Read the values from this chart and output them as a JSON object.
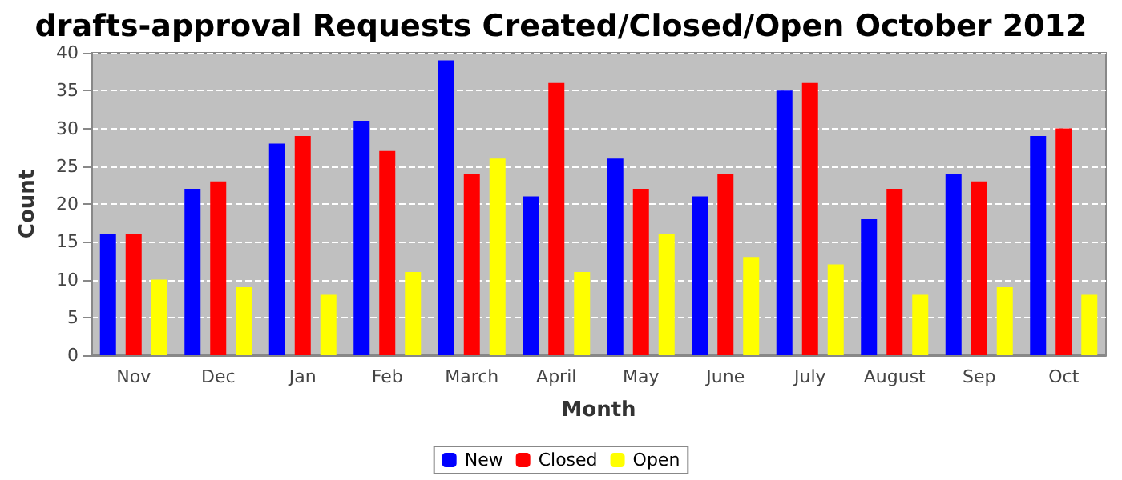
{
  "chart_data": {
    "type": "bar",
    "title": "drafts-approval Requests Created/Closed/Open October 2012",
    "xlabel": "Month",
    "ylabel": "Count",
    "categories": [
      "Nov",
      "Dec",
      "Jan",
      "Feb",
      "March",
      "April",
      "May",
      "June",
      "July",
      "August",
      "Sep",
      "Oct"
    ],
    "series": [
      {
        "name": "New",
        "color": "#0000ff",
        "values": [
          16,
          22,
          28,
          31,
          39,
          21,
          26,
          21,
          35,
          18,
          24,
          29
        ]
      },
      {
        "name": "Closed",
        "color": "#ff0000",
        "values": [
          16,
          23,
          29,
          27,
          24,
          36,
          22,
          24,
          36,
          22,
          23,
          30
        ]
      },
      {
        "name": "Open",
        "color": "#ffff00",
        "values": [
          10,
          9,
          8,
          11,
          26,
          11,
          16,
          13,
          12,
          8,
          9,
          8
        ]
      }
    ],
    "ylim": [
      0,
      40
    ],
    "yticks": [
      0,
      5,
      10,
      15,
      20,
      25,
      30,
      35,
      40
    ],
    "grid": "y",
    "legend": "bottom"
  }
}
